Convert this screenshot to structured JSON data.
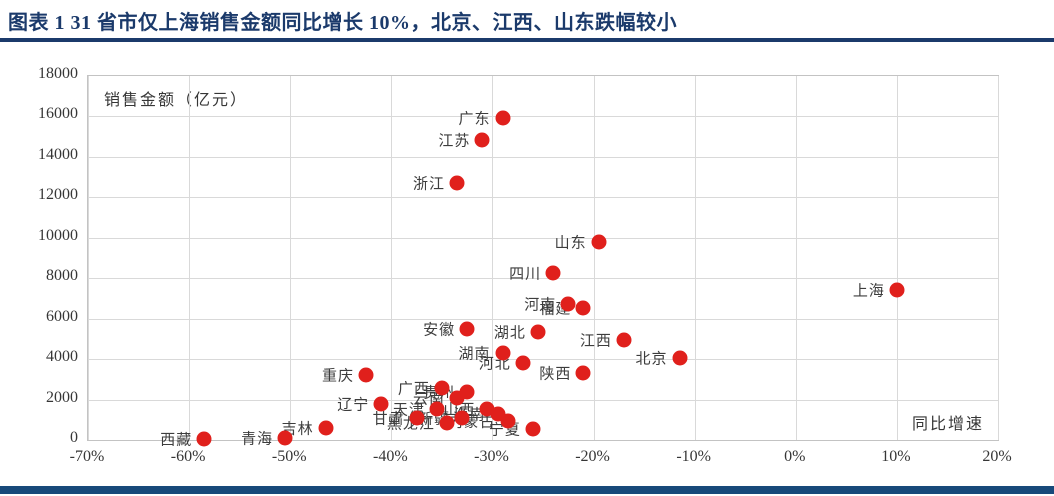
{
  "title": "图表 1  31 省市仅上海销售金额同比增长 10%，北京、江西、山东跌幅较小",
  "colors": {
    "title_navy": "#1B3A6B",
    "footer_navy": "#17497A",
    "dot_red": "#E0201C",
    "gridline_gray": "#d9d9d9",
    "axis_text_gray": "#363636"
  },
  "chart_data": {
    "type": "scatter",
    "title": "图表 1  31 省市仅上海销售金额同比增长 10%，北京、江西、山东跌幅较小",
    "y_axis_label": "销售金额（亿元）",
    "x_axis_label": "同比增速",
    "xlim": [
      -70,
      20
    ],
    "ylim": [
      0,
      18000
    ],
    "x_tick_step": 10,
    "y_tick_step": 2000,
    "grid": true,
    "legend": "none",
    "x_tick_labels": [
      "-70%",
      "-60%",
      "-50%",
      "-40%",
      "-30%",
      "-20%",
      "-10%",
      "0%",
      "10%",
      "20%"
    ],
    "y_tick_labels": [
      "0",
      "2000",
      "4000",
      "6000",
      "8000",
      "10000",
      "12000",
      "14000",
      "16000",
      "18000"
    ],
    "x_unit": "percent_yoy_growth",
    "y_unit": "sales_amount_100m_yuan",
    "points": [
      {
        "name": "广东",
        "x": -29,
        "y": 15900
      },
      {
        "name": "江苏",
        "x": -31,
        "y": 14850
      },
      {
        "name": "浙江",
        "x": -33.5,
        "y": 12700
      },
      {
        "name": "山东",
        "x": -19.5,
        "y": 9800
      },
      {
        "name": "四川",
        "x": -24,
        "y": 8250
      },
      {
        "name": "上海",
        "x": 10,
        "y": 7400
      },
      {
        "name": "河南",
        "x": -22.5,
        "y": 6750
      },
      {
        "name": "福建",
        "x": -21,
        "y": 6550
      },
      {
        "name": "安徽",
        "x": -32.5,
        "y": 5500
      },
      {
        "name": "湖北",
        "x": -25.5,
        "y": 5350
      },
      {
        "name": "江西",
        "x": -17,
        "y": 4950
      },
      {
        "name": "湖南",
        "x": -29,
        "y": 4300
      },
      {
        "name": "北京",
        "x": -11.5,
        "y": 4050
      },
      {
        "name": "河北",
        "x": -27,
        "y": 3800
      },
      {
        "name": "陕西",
        "x": -21,
        "y": 3300
      },
      {
        "name": "重庆",
        "x": -42.5,
        "y": 3200
      },
      {
        "name": "广西",
        "x": -35,
        "y": 2550
      },
      {
        "name": "贵州",
        "x": -32.5,
        "y": 2350
      },
      {
        "name": "云南",
        "x": -33.5,
        "y": 2100
      },
      {
        "name": "辽宁",
        "x": -41,
        "y": 1800
      },
      {
        "name": "天津",
        "x": -35.5,
        "y": 1550
      },
      {
        "name": "山西",
        "x": -30.5,
        "y": 1550
      },
      {
        "name": "海南",
        "x": -29.5,
        "y": 1300
      },
      {
        "name": "甘肃",
        "x": -37.5,
        "y": 1100
      },
      {
        "name": "新疆",
        "x": -33,
        "y": 1100
      },
      {
        "name": "内蒙古",
        "x": -28.5,
        "y": 950
      },
      {
        "name": "黑龙江",
        "x": -34.5,
        "y": 850
      },
      {
        "name": "吉林",
        "x": -46.5,
        "y": 600
      },
      {
        "name": "宁夏",
        "x": -26,
        "y": 550
      },
      {
        "name": "青海",
        "x": -50.5,
        "y": 100
      },
      {
        "name": "西藏",
        "x": -58.5,
        "y": 50
      }
    ]
  }
}
